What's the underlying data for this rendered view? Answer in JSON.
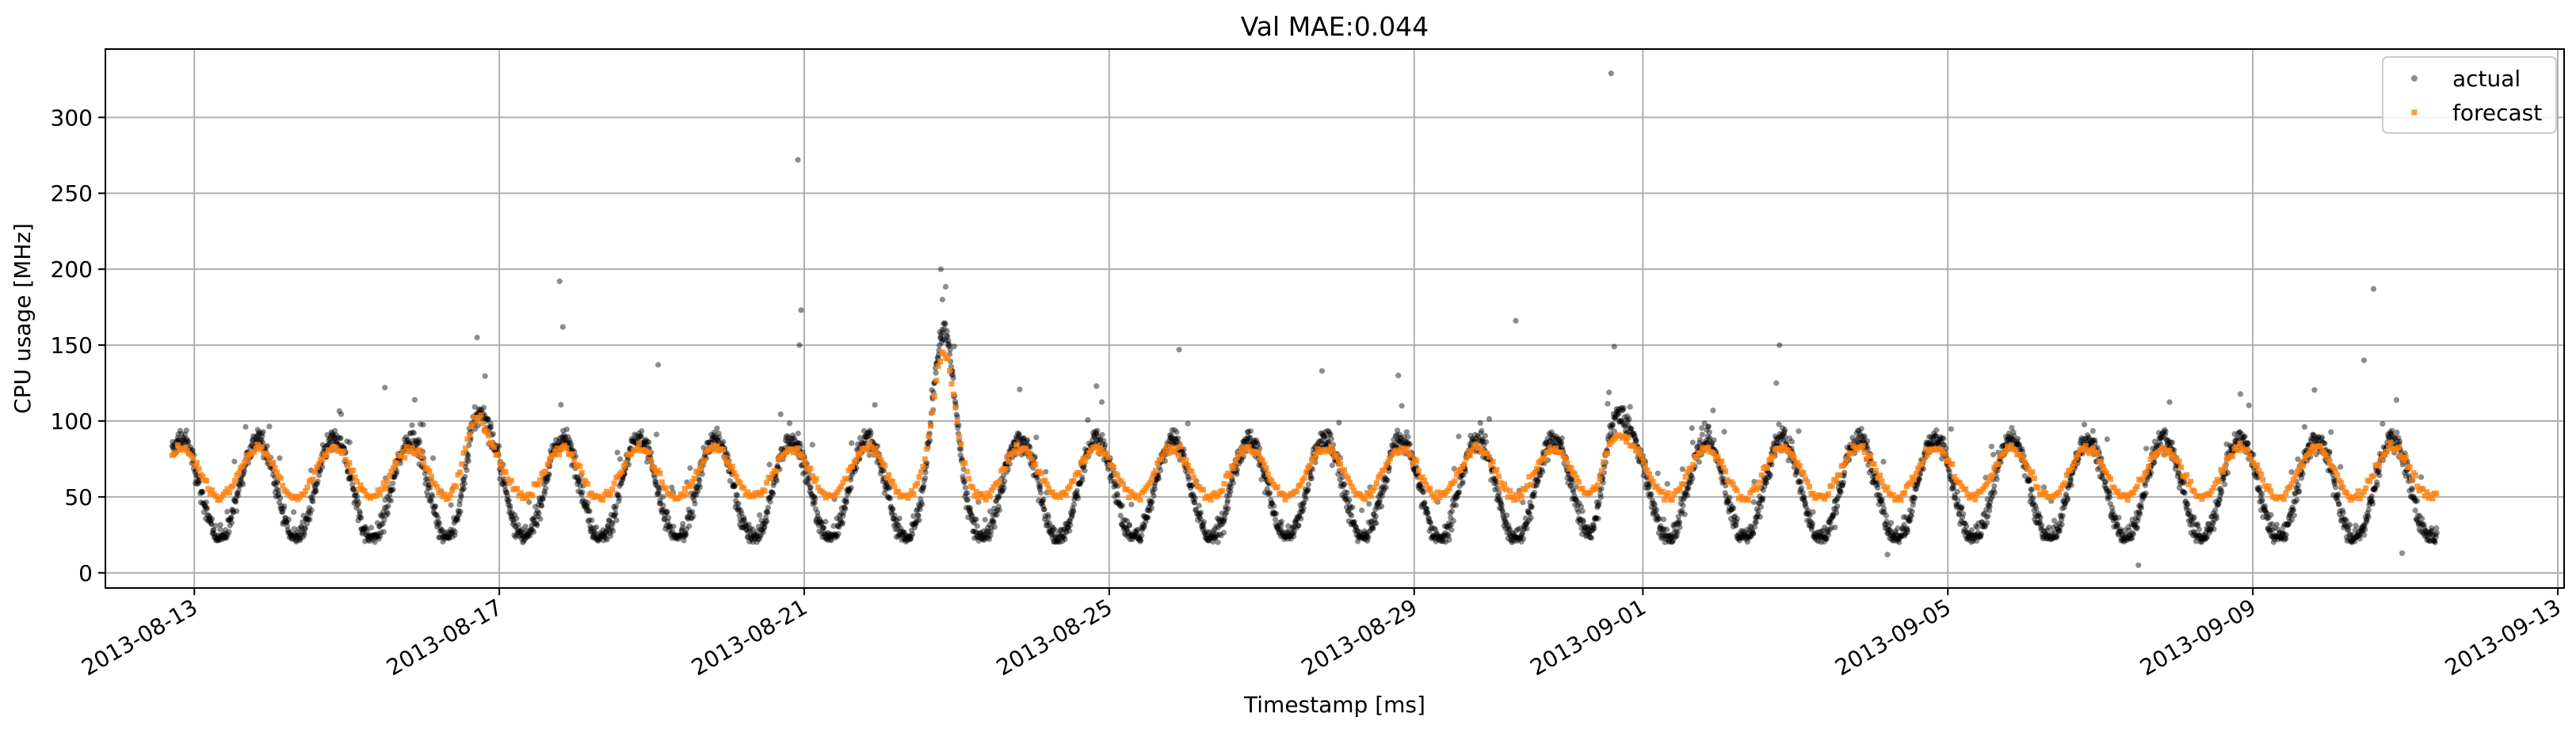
{
  "chart_data": {
    "type": "scatter",
    "title": "Val MAE:0.044",
    "xlabel": "Timestamp [ms]",
    "ylabel": "CPU usage [MHz]",
    "x_axis_type": "date",
    "xlim": [
      "2013-08-11T20:00",
      "2013-09-13T02:00"
    ],
    "ylim": [
      -10,
      345
    ],
    "x_ticks": [
      "2013-08-13",
      "2013-08-17",
      "2013-08-21",
      "2013-08-25",
      "2013-08-29",
      "2013-09-01",
      "2013-09-05",
      "2013-09-09",
      "2013-09-13"
    ],
    "y_ticks": [
      0,
      50,
      100,
      150,
      200,
      250,
      300
    ],
    "grid": true,
    "legend_position": "top-right",
    "data_range": {
      "start": "2013-08-12T17:00",
      "end": "2013-09-11T10:00"
    },
    "series": [
      {
        "name": "actual",
        "color": "#000000",
        "opacity": 0.45,
        "marker": "circle"
      },
      {
        "name": "forecast",
        "color": "#ff7f0e",
        "opacity": 0.8,
        "marker": "square"
      }
    ],
    "pattern": {
      "actual_daily_min": 22,
      "actual_daily_max": 88,
      "forecast_daily_min": 50,
      "forecast_daily_max": 82,
      "points_per_day": 170
    },
    "outliers": [
      {
        "x": "2013-08-16T17:00",
        "y": 155
      },
      {
        "x": "2013-08-17T19:00",
        "y": 192
      },
      {
        "x": "2013-08-17T20:00",
        "y": 162
      },
      {
        "x": "2013-08-19T02:00",
        "y": 137
      },
      {
        "x": "2013-08-15T12:00",
        "y": 122
      },
      {
        "x": "2013-08-20T22:00",
        "y": 272
      },
      {
        "x": "2013-08-20T23:00",
        "y": 173
      },
      {
        "x": "2013-08-20T22:30",
        "y": 150
      },
      {
        "x": "2013-08-22T19:00",
        "y": 200
      },
      {
        "x": "2013-08-22T19:30",
        "y": 180
      },
      {
        "x": "2013-08-24T20:00",
        "y": 123
      },
      {
        "x": "2013-08-25T22:00",
        "y": 147
      },
      {
        "x": "2013-08-27T19:00",
        "y": 133
      },
      {
        "x": "2013-08-28T19:00",
        "y": 130
      },
      {
        "x": "2013-08-30T08:00",
        "y": 166
      },
      {
        "x": "2013-08-31T14:00",
        "y": 329
      },
      {
        "x": "2013-08-31T15:00",
        "y": 149
      },
      {
        "x": "2013-09-02T19:00",
        "y": 150
      },
      {
        "x": "2013-09-02T18:00",
        "y": 125
      },
      {
        "x": "2013-09-07T12:00",
        "y": 5
      },
      {
        "x": "2013-09-10T11:00",
        "y": 140
      },
      {
        "x": "2013-09-10T14:00",
        "y": 187
      },
      {
        "x": "2013-09-10T23:00",
        "y": 13
      },
      {
        "x": "2013-09-04T05:00",
        "y": 12
      }
    ],
    "events": [
      {
        "x": "2013-08-22T20:00",
        "actual_peak": 160,
        "forecast_peak": 145
      },
      {
        "x": "2013-08-16T16:00",
        "actual_peak": 115,
        "forecast_peak": 108
      },
      {
        "x": "2013-08-31T14:00",
        "actual_peak": 128,
        "forecast_peak": 102
      }
    ]
  }
}
